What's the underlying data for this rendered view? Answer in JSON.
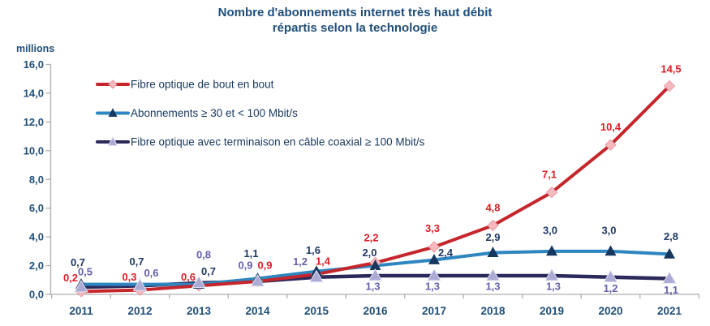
{
  "title": {
    "line1": "Nombre d'abonnements internet très haut débit",
    "line2": "répartis selon la technologie"
  },
  "y_axis_unit_label": "millions",
  "colors": {
    "title_text": "#1F4E79",
    "axis_text": "#1F4E79",
    "axis_line": "#AFAFAF",
    "background": "#FFFFFF"
  },
  "chart_data": {
    "type": "line",
    "title": "Nombre d'abonnements internet très haut débit répartis selon la technologie",
    "xlabel": "",
    "ylabel": "millions",
    "ylim": [
      0,
      16
    ],
    "y_tick_labels": [
      "0,0",
      "2,0",
      "4,0",
      "6,0",
      "8,0",
      "10,0",
      "12,0",
      "14,0",
      "16,0"
    ],
    "grid": false,
    "legend_position": "inside-top-left",
    "categories": [
      "2011",
      "2012",
      "2013",
      "2014",
      "2015",
      "2016",
      "2017",
      "2018",
      "2019",
      "2020",
      "2021"
    ],
    "series": [
      {
        "name": "Fibre optique de bout en bout",
        "values": [
          0.2,
          0.3,
          0.6,
          0.9,
          1.4,
          2.2,
          3.3,
          4.8,
          7.1,
          10.4,
          14.5
        ],
        "labels": [
          "0,2",
          "0,3",
          "0,6",
          "0,9",
          "1,4",
          "2,2",
          "3,3",
          "4,8",
          "7,1",
          "10,4",
          "14,5"
        ],
        "line_color": "#C5262C",
        "label_color": "#DC1E26",
        "marker": "diamond",
        "marker_fill": "#F6B9BF",
        "marker_stroke": "#E79AA2",
        "label_offsets": [
          [
            -13,
            -17
          ],
          [
            -13,
            -16
          ],
          [
            -13,
            -11
          ],
          [
            9,
            -20
          ],
          [
            8,
            -16
          ],
          [
            -5,
            -31
          ],
          [
            -2,
            -23
          ],
          [
            0,
            -22
          ],
          [
            -3,
            -22
          ],
          [
            0,
            -22
          ],
          [
            2,
            -21
          ]
        ]
      },
      {
        "name": "Abonnements ≥ 30 et < 100 Mbit/s",
        "values": [
          0.7,
          0.7,
          0.7,
          1.1,
          1.6,
          2.0,
          2.4,
          2.9,
          3.0,
          3.0,
          2.8
        ],
        "labels": [
          "0,7",
          "0,7",
          "0,7",
          "1,1",
          "1,6",
          "2,0",
          "2,4",
          "2,9",
          "3,0",
          "3,0",
          "2,8"
        ],
        "line_color": "#2E86C1",
        "label_color": "#1F3864",
        "marker": "triangle",
        "marker_fill": "#17375E",
        "marker_stroke": "none",
        "label_offsets": [
          [
            -4,
            -27
          ],
          [
            -4,
            -28
          ],
          [
            12,
            -16
          ],
          [
            -8,
            -31
          ],
          [
            -4,
            -26
          ],
          [
            -7,
            -16
          ],
          [
            14,
            -9
          ],
          [
            0,
            -19
          ],
          [
            -2,
            -26
          ],
          [
            -2,
            -26
          ],
          [
            2,
            -22
          ]
        ]
      },
      {
        "name": "Fibre optique avec terminaison en câble coaxial ≥ 100 Mbit/s",
        "values": [
          0.5,
          0.6,
          0.8,
          0.9,
          1.2,
          1.3,
          1.3,
          1.3,
          1.3,
          1.2,
          1.1
        ],
        "labels": [
          "0,5",
          "0,6",
          "0,8",
          "0,9",
          "1,2",
          "1,3",
          "1,3",
          "1,3",
          "1,3",
          "1,2",
          "1,1"
        ],
        "line_color": "#2B2A5B",
        "label_color": "#6460AB",
        "marker": "triangle",
        "marker_fill": "#ABABD6",
        "marker_stroke": "#E4E4F2",
        "label_offsets": [
          [
            5,
            -19
          ],
          [
            14,
            -16
          ],
          [
            6,
            -35
          ],
          [
            -15,
            -20
          ],
          [
            -20,
            -19
          ],
          [
            -3,
            13
          ],
          [
            -2,
            13
          ],
          [
            0,
            13
          ],
          [
            2,
            13
          ],
          [
            0,
            14
          ],
          [
            2,
            14
          ]
        ]
      }
    ]
  }
}
